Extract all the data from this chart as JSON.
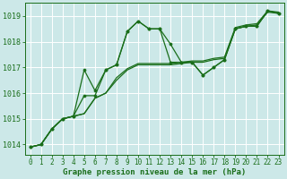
{
  "bg_color": "#cce8e8",
  "grid_color": "#ffffff",
  "line_color": "#1a6e1a",
  "marker_color": "#1a6e1a",
  "xlabel": "Graphe pression niveau de la mer (hPa)",
  "ylim": [
    1013.6,
    1019.5
  ],
  "xlim": [
    -0.5,
    23.5
  ],
  "yticks": [
    1014,
    1015,
    1016,
    1017,
    1018,
    1019
  ],
  "xticks": [
    0,
    1,
    2,
    3,
    4,
    5,
    6,
    7,
    8,
    9,
    10,
    11,
    12,
    13,
    14,
    15,
    16,
    17,
    18,
    19,
    20,
    21,
    22,
    23
  ],
  "series_no_marker": [
    [
      1013.9,
      1014.0,
      1014.6,
      1015.0,
      1015.1,
      1015.2,
      1015.8,
      1016.0,
      1016.5,
      1016.9,
      1017.1,
      1017.1,
      1017.1,
      1017.1,
      1017.15,
      1017.2,
      1017.2,
      1017.3,
      1017.35,
      1018.5,
      1018.6,
      1018.65,
      1019.15,
      1019.1
    ],
    [
      1013.9,
      1014.0,
      1014.6,
      1015.0,
      1015.1,
      1015.2,
      1015.8,
      1016.0,
      1016.6,
      1016.95,
      1017.15,
      1017.15,
      1017.15,
      1017.15,
      1017.2,
      1017.25,
      1017.25,
      1017.35,
      1017.4,
      1018.55,
      1018.65,
      1018.7,
      1019.2,
      1019.15
    ]
  ],
  "series_with_marker": [
    [
      1013.9,
      1014.0,
      1014.6,
      1015.0,
      1015.1,
      1015.9,
      1015.9,
      1016.9,
      1017.1,
      1018.4,
      1018.8,
      1018.5,
      1018.5,
      1017.9,
      1017.2,
      1017.2,
      1016.7,
      1017.0,
      1017.3,
      1018.5,
      1018.6,
      1018.6,
      1019.2,
      1019.1
    ],
    [
      1013.9,
      1014.0,
      1014.6,
      1015.0,
      1015.1,
      1016.9,
      1016.1,
      1016.9,
      1017.1,
      1018.4,
      1018.8,
      1018.5,
      1018.5,
      1017.2,
      1017.2,
      1017.2,
      1016.7,
      1017.0,
      1017.3,
      1018.5,
      1018.6,
      1018.6,
      1019.2,
      1019.1
    ]
  ],
  "linewidth": 0.9,
  "markersize": 2.2,
  "tick_fontsize": 5.5,
  "xlabel_fontsize": 6.5
}
